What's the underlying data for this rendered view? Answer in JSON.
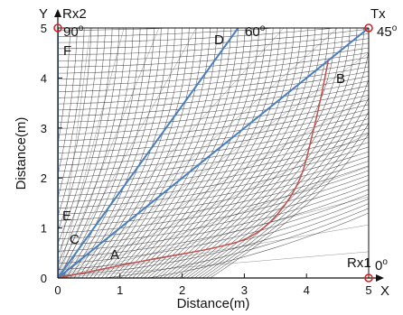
{
  "figure": {
    "x_axis_label": "Distance(m)",
    "y_axis_label": "Distance(m)",
    "x_axis_letter": "X",
    "y_axis_letter": "Y",
    "x_ticks": [
      "0",
      "1",
      "2",
      "3",
      "4",
      "5"
    ],
    "y_ticks": [
      "0",
      "1",
      "2",
      "3",
      "4",
      "5"
    ],
    "x_range": [
      0,
      5
    ],
    "y_range": [
      0,
      5
    ],
    "colors": {
      "mesh": "#222222",
      "blue_line": "#4a7fbf",
      "red_curve": "#c0504d",
      "marker": "#d62020",
      "frame": "#111111"
    },
    "markers": [
      {
        "label": "Tx",
        "x": 5,
        "y": 5
      },
      {
        "label": "Rx2",
        "x": 0,
        "y": 5
      },
      {
        "label": "Rx1",
        "x": 5,
        "y": 0
      }
    ],
    "angle_labels": [
      {
        "value": "90",
        "unit": "o"
      },
      {
        "value": "60",
        "unit": "o"
      },
      {
        "value": "45",
        "unit": "o"
      },
      {
        "value": "0",
        "unit": "o"
      }
    ],
    "blue_lines": [
      {
        "letter": "D",
        "x_end": 2.9,
        "y_end": 5
      },
      {
        "letter": "B",
        "x_end": 5,
        "y_end": 5
      },
      {
        "letter": "F",
        "x_end": 0,
        "y_end": 5
      }
    ],
    "point_letters": [
      "A",
      "B",
      "C",
      "D",
      "E",
      "F"
    ],
    "red_curve": [
      {
        "x": 0,
        "y": 0
      },
      {
        "x": 1.5,
        "y": 0.37
      },
      {
        "x": 2.5,
        "y": 0.6
      },
      {
        "x": 3.1,
        "y": 0.83
      },
      {
        "x": 3.55,
        "y": 1.3
      },
      {
        "x": 3.9,
        "y": 2.0
      },
      {
        "x": 4.1,
        "y": 2.9
      },
      {
        "x": 4.23,
        "y": 3.6
      },
      {
        "x": 4.35,
        "y": 4.35
      }
    ]
  }
}
